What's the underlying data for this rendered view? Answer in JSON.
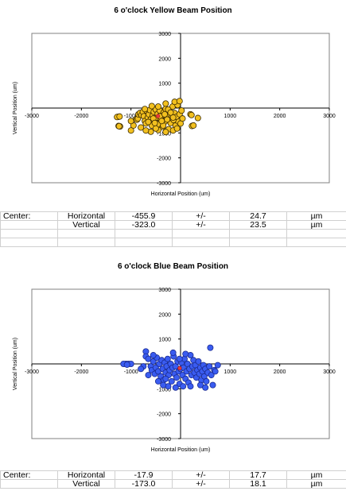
{
  "charts": [
    {
      "title": "6 o'clock Yellow   Beam Position",
      "xlabel": "Horizontal Position  (um)",
      "ylabel": "Vertical Position  (um)",
      "center_label": "Center:",
      "rows": [
        {
          "axis": "Horizontal",
          "value": "-455.9",
          "pm": "+/-",
          "err": "24.7",
          "unit": "µm"
        },
        {
          "axis": "Vertical",
          "value": "-323.0",
          "pm": "+/-",
          "err": "23.5",
          "unit": "µm"
        }
      ]
    },
    {
      "title": "6 o'clock Blue   Beam Position",
      "xlabel": "Horizontal Position  (um)",
      "ylabel": "Vertical Position  (um)",
      "center_label": "Center:",
      "rows": [
        {
          "axis": "Horizontal",
          "value": "-17.9",
          "pm": "+/-",
          "err": "17.7",
          "unit": "µm"
        },
        {
          "axis": "Vertical",
          "value": "-173.0",
          "pm": "+/-",
          "err": "18.1",
          "unit": "µm"
        }
      ]
    }
  ],
  "chart_data": [
    {
      "type": "scatter",
      "title": "6 o'clock Yellow   Beam Position",
      "xlabel": "Horizontal Position  (um)",
      "ylabel": "Vertical Position  (um)",
      "xlim": [
        -3000,
        3000
      ],
      "ylim": [
        -3000,
        3000
      ],
      "xticks": [
        -3000,
        -2000,
        -1000,
        0,
        1000,
        2000,
        3000
      ],
      "yticks": [
        -3000,
        -2000,
        -1000,
        0,
        1000,
        2000,
        3000
      ],
      "grid": false,
      "point_color": "#f2c01f",
      "point_edge": "#3a2a00",
      "center": {
        "x": -455.9,
        "y": -323.0,
        "color": "#e83a3a"
      },
      "points": [
        [
          -1250,
          -350
        ],
        [
          -1280,
          -360
        ],
        [
          -1230,
          -340
        ],
        [
          -1250,
          -720
        ],
        [
          -1220,
          -740
        ],
        [
          -1240,
          -730
        ],
        [
          -900,
          -450
        ],
        [
          -880,
          -470
        ],
        [
          -860,
          -420
        ],
        [
          -850,
          -250
        ],
        [
          -820,
          -200
        ],
        [
          -790,
          -280
        ],
        [
          -760,
          -150
        ],
        [
          -740,
          -330
        ],
        [
          -720,
          -520
        ],
        [
          -700,
          -620
        ],
        [
          -680,
          -120
        ],
        [
          -660,
          -380
        ],
        [
          -640,
          -250
        ],
        [
          -620,
          -80
        ],
        [
          -600,
          -450
        ],
        [
          -580,
          -700
        ],
        [
          -560,
          -300
        ],
        [
          -540,
          -150
        ],
        [
          -520,
          -520
        ],
        [
          -500,
          -60
        ],
        [
          -480,
          -380
        ],
        [
          -460,
          -230
        ],
        [
          -440,
          -650
        ],
        [
          -420,
          -100
        ],
        [
          -400,
          -450
        ],
        [
          -380,
          -300
        ],
        [
          -360,
          -750
        ],
        [
          -340,
          -180
        ],
        [
          -320,
          -550
        ],
        [
          -300,
          -30
        ],
        [
          -280,
          -400
        ],
        [
          -260,
          -250
        ],
        [
          -240,
          -850
        ],
        [
          -220,
          -120
        ],
        [
          -200,
          -600
        ],
        [
          -180,
          -300
        ],
        [
          -160,
          60
        ],
        [
          -140,
          -480
        ],
        [
          -120,
          -200
        ],
        [
          -100,
          -700
        ],
        [
          -80,
          -350
        ],
        [
          -60,
          120
        ],
        [
          -40,
          -550
        ],
        [
          -20,
          -250
        ],
        [
          0,
          -620
        ],
        [
          20,
          -100
        ],
        [
          40,
          -420
        ],
        [
          -600,
          -950
        ],
        [
          -450,
          -880
        ],
        [
          -300,
          -960
        ],
        [
          -150,
          -900
        ],
        [
          -800,
          -780
        ],
        [
          -700,
          -900
        ],
        [
          -950,
          -700
        ],
        [
          -1000,
          -520
        ],
        [
          -500,
          -820
        ],
        [
          -350,
          -700
        ],
        [
          -250,
          -60
        ],
        [
          -150,
          -380
        ],
        [
          -650,
          -560
        ],
        [
          -550,
          -420
        ],
        [
          -420,
          -330
        ],
        [
          -380,
          -520
        ],
        [
          -320,
          -250
        ],
        [
          -270,
          -460
        ],
        [
          -200,
          -180
        ],
        [
          200,
          -250
        ],
        [
          220,
          -280
        ],
        [
          230,
          -720
        ],
        [
          260,
          -700
        ],
        [
          350,
          -400
        ],
        [
          -720,
          -40
        ],
        [
          -580,
          80
        ],
        [
          -450,
          60
        ],
        [
          -300,
          180
        ],
        [
          -120,
          250
        ],
        [
          -20,
          280
        ],
        [
          -70,
          -820
        ],
        [
          -1000,
          -900
        ],
        [
          -520,
          -600
        ]
      ]
    },
    {
      "type": "scatter",
      "title": "6 o'clock Blue   Beam Position",
      "xlabel": "Horizontal Position  (um)",
      "ylabel": "Vertical Position  (um)",
      "xlim": [
        -3000,
        3000
      ],
      "ylim": [
        -3000,
        3000
      ],
      "xticks": [
        -3000,
        -2000,
        -1000,
        0,
        1000,
        2000,
        3000
      ],
      "yticks": [
        -3000,
        -2000,
        -1000,
        0,
        1000,
        2000,
        3000
      ],
      "grid": false,
      "point_color": "#3a5cf0",
      "point_edge": "#1a2a90",
      "center": {
        "x": -17.9,
        "y": -173.0,
        "color": "#e83a3a"
      },
      "points": [
        [
          -1100,
          0
        ],
        [
          -1050,
          0
        ],
        [
          -1000,
          0
        ],
        [
          -1150,
          0
        ],
        [
          -1080,
          -30
        ],
        [
          -700,
          500
        ],
        [
          -700,
          300
        ],
        [
          -650,
          200
        ],
        [
          -600,
          -100
        ],
        [
          -580,
          -250
        ],
        [
          -550,
          100
        ],
        [
          -520,
          -400
        ],
        [
          -500,
          -150
        ],
        [
          -480,
          250
        ],
        [
          -450,
          -300
        ],
        [
          -430,
          0
        ],
        [
          -400,
          -500
        ],
        [
          -380,
          150
        ],
        [
          -360,
          -200
        ],
        [
          -340,
          -650
        ],
        [
          -320,
          50
        ],
        [
          -300,
          -350
        ],
        [
          -280,
          -100
        ],
        [
          -260,
          200
        ],
        [
          -240,
          -450
        ],
        [
          -220,
          -250
        ],
        [
          -200,
          0
        ],
        [
          -180,
          -700
        ],
        [
          -160,
          -150
        ],
        [
          -140,
          300
        ],
        [
          -120,
          -400
        ],
        [
          -100,
          -100
        ],
        [
          -80,
          -550
        ],
        [
          -60,
          100
        ],
        [
          -40,
          -300
        ],
        [
          -20,
          -800
        ],
        [
          0,
          -200
        ],
        [
          20,
          50
        ],
        [
          40,
          -450
        ],
        [
          60,
          -150
        ],
        [
          80,
          200
        ],
        [
          100,
          -600
        ],
        [
          120,
          -300
        ],
        [
          140,
          0
        ],
        [
          160,
          -750
        ],
        [
          180,
          -200
        ],
        [
          200,
          350
        ],
        [
          220,
          -450
        ],
        [
          240,
          -100
        ],
        [
          260,
          150
        ],
        [
          280,
          -350
        ],
        [
          300,
          -50
        ],
        [
          320,
          -550
        ],
        [
          340,
          -250
        ],
        [
          360,
          100
        ],
        [
          380,
          -400
        ],
        [
          400,
          -150
        ],
        [
          420,
          -650
        ],
        [
          440,
          -300
        ],
        [
          460,
          -50
        ],
        [
          480,
          -500
        ],
        [
          500,
          -200
        ],
        [
          520,
          -700
        ],
        [
          550,
          -350
        ],
        [
          580,
          -100
        ],
        [
          620,
          -450
        ],
        [
          680,
          -250
        ],
        [
          -250,
          -900
        ],
        [
          -100,
          -950
        ],
        [
          50,
          -900
        ],
        [
          -450,
          -700
        ],
        [
          -750,
          -100
        ],
        [
          -650,
          -450
        ],
        [
          -350,
          -850
        ],
        [
          -800,
          -200
        ],
        [
          -550,
          350
        ],
        [
          200,
          -900
        ],
        [
          400,
          -850
        ],
        [
          600,
          650
        ],
        [
          700,
          -300
        ],
        [
          750,
          -50
        ],
        [
          -150,
          450
        ],
        [
          -20,
          200
        ],
        [
          -300,
          -600
        ],
        [
          100,
          400
        ],
        [
          500,
          -950
        ],
        [
          650,
          -850
        ]
      ]
    }
  ]
}
